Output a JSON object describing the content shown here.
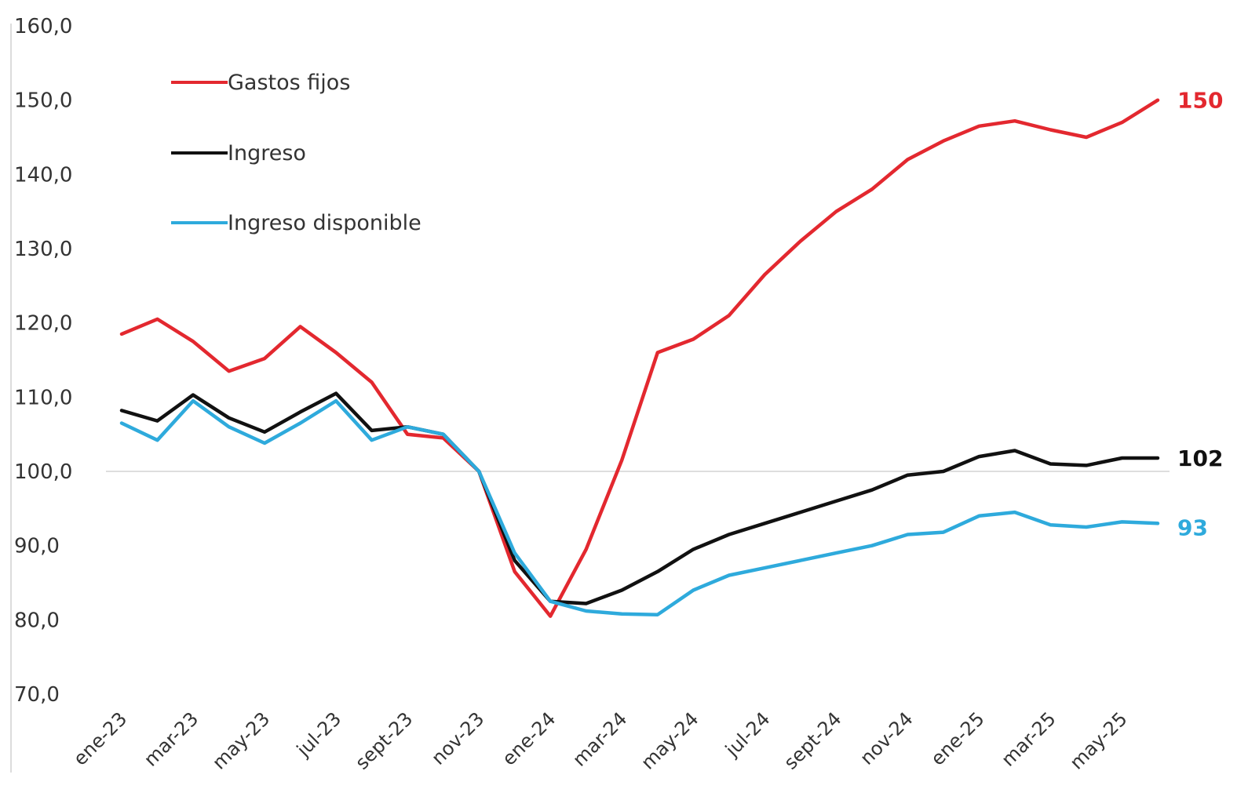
{
  "chart_data": {
    "type": "line",
    "ylim": [
      70,
      160
    ],
    "y_ticks": [
      "70,0",
      "80,0",
      "90,0",
      "100,0",
      "110,0",
      "120,0",
      "130,0",
      "140,0",
      "150,0",
      "160,0"
    ],
    "y_tick_values": [
      70,
      80,
      90,
      100,
      110,
      120,
      130,
      140,
      150,
      160
    ],
    "reference_line": 100,
    "x": [
      "ene-23",
      "feb-23",
      "mar-23",
      "abr-23",
      "may-23",
      "jun-23",
      "jul-23",
      "ago-23",
      "sept-23",
      "oct-23",
      "nov-23",
      "dic-23",
      "ene-24",
      "feb-24",
      "mar-24",
      "abr-24",
      "may-24",
      "jun-24",
      "jul-24",
      "ago-24",
      "sept-24",
      "oct-24",
      "nov-24",
      "dic-24",
      "ene-25",
      "feb-25",
      "mar-25",
      "abr-25",
      "may-25",
      "jun-25"
    ],
    "x_tick_labels": [
      "ene-23",
      "mar-23",
      "may-23",
      "jul-23",
      "sept-23",
      "nov-23",
      "ene-24",
      "mar-24",
      "may-24",
      "jul-24",
      "sept-24",
      "nov-24",
      "ene-25",
      "mar-25",
      "may-25"
    ],
    "x_tick_indices": [
      0,
      2,
      4,
      6,
      8,
      10,
      12,
      14,
      16,
      18,
      20,
      22,
      24,
      26,
      28
    ],
    "legend_position": "top-left",
    "grid": false,
    "series": [
      {
        "name": "Gastos fijos",
        "color": "#e3282f",
        "end_label": "150",
        "values": [
          118.5,
          120.5,
          117.5,
          113.5,
          115.2,
          119.5,
          116.0,
          112.0,
          105.0,
          104.5,
          100.0,
          86.5,
          80.5,
          89.5,
          101.5,
          116.0,
          117.8,
          121.0,
          126.5,
          131.0,
          135.0,
          138.0,
          142.0,
          144.5,
          146.5,
          147.2,
          146.0,
          145.0,
          147.0,
          150.0
        ]
      },
      {
        "name": "Ingreso",
        "color": "#111111",
        "end_label": "102",
        "values": [
          108.2,
          106.8,
          110.3,
          107.2,
          105.3,
          108.0,
          110.5,
          105.5,
          106.0,
          105.0,
          100.0,
          88.0,
          82.5,
          82.2,
          84.0,
          86.5,
          89.5,
          91.5,
          93.0,
          94.5,
          96.0,
          97.5,
          99.5,
          100.0,
          102.0,
          102.8,
          101.0,
          100.8,
          101.8,
          101.8
        ]
      },
      {
        "name": "Ingreso disponible",
        "color": "#2eaadc",
        "end_label": "93",
        "values": [
          106.5,
          104.2,
          109.5,
          106.0,
          103.8,
          106.5,
          109.5,
          104.2,
          106.0,
          105.0,
          100.0,
          89.0,
          82.5,
          81.2,
          80.8,
          80.7,
          84.0,
          86.0,
          87.0,
          88.0,
          89.0,
          90.0,
          91.5,
          91.8,
          94.0,
          94.5,
          92.8,
          92.5,
          93.2,
          93.0
        ]
      }
    ]
  }
}
